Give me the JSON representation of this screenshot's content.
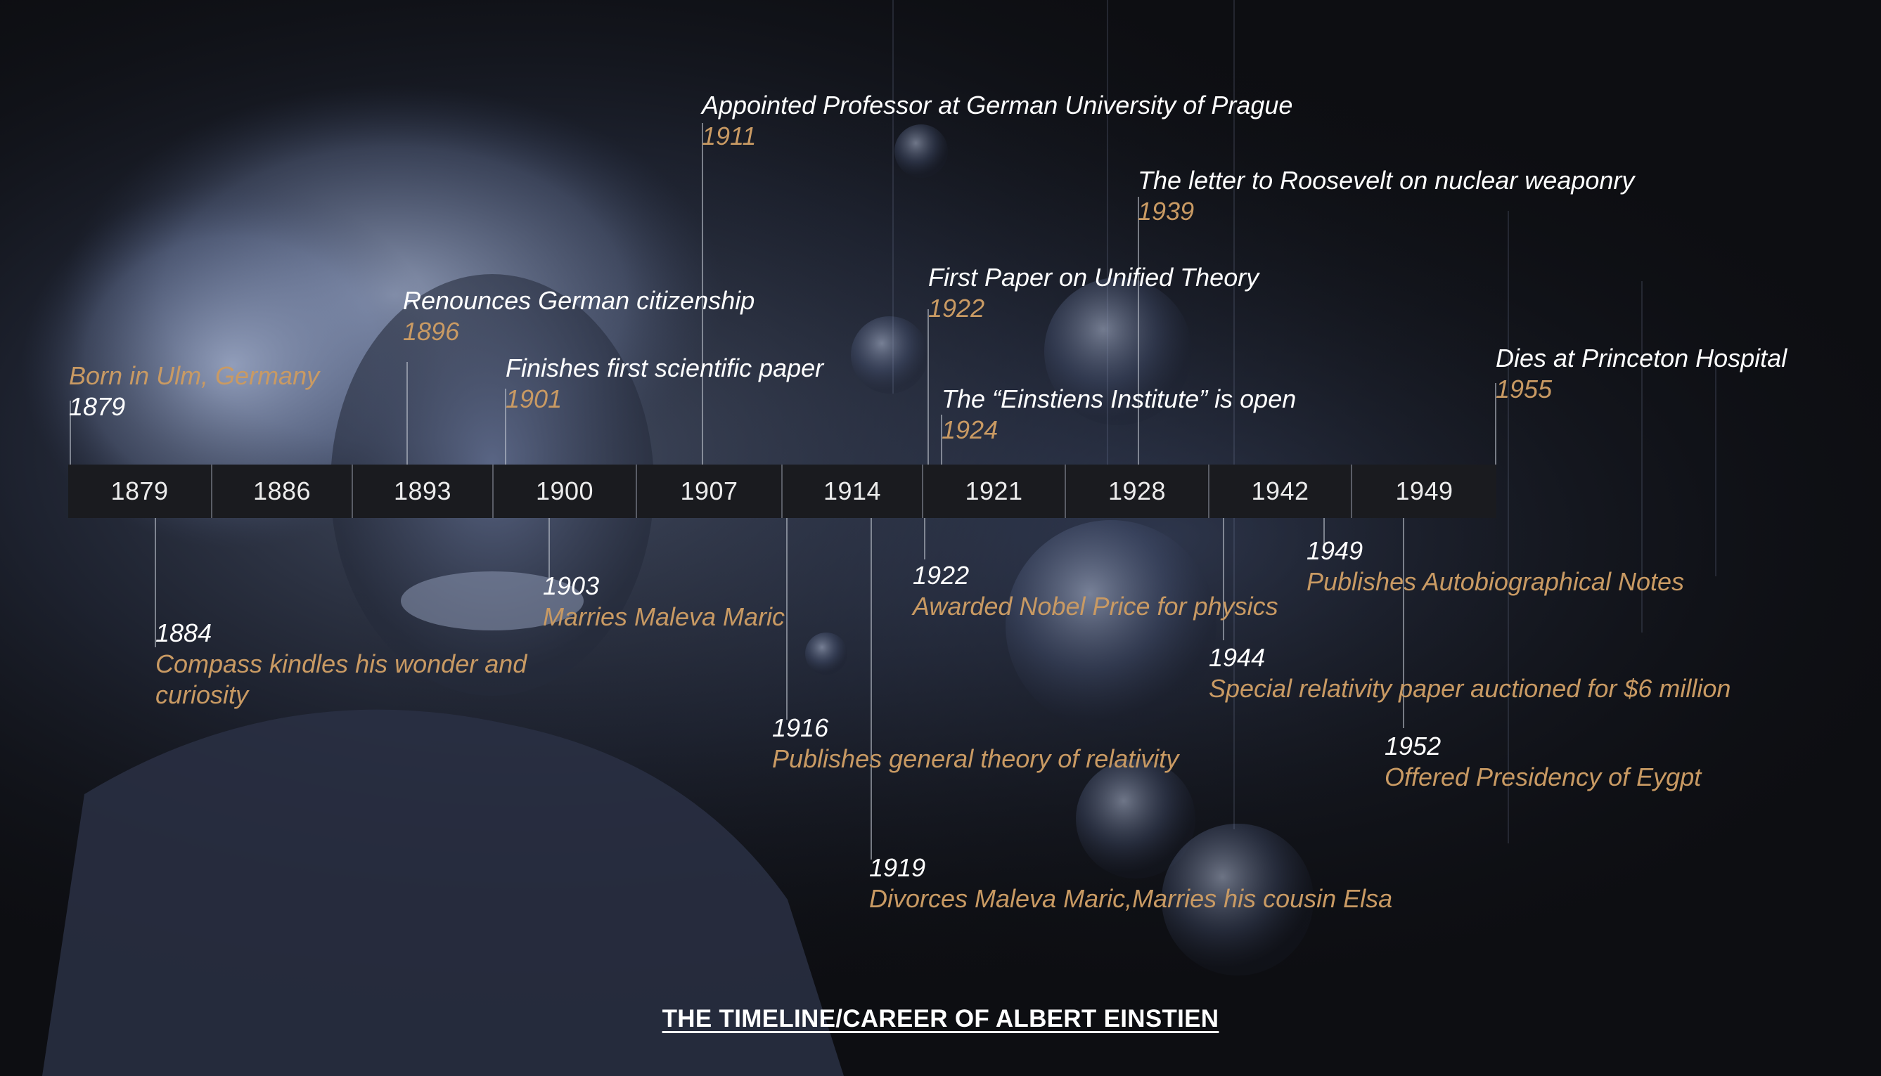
{
  "title": "THE TIMELINE/CAREER OF ALBERT EINSTIEN",
  "colors": {
    "background": "#0d0e12",
    "year_text": "#ffffff",
    "event_text": "#c99a63",
    "bar": "#1a1b1f"
  },
  "axis_ticks": [
    "1879",
    "1886",
    "1893",
    "1900",
    "1907",
    "1914",
    "1921",
    "1928",
    "1942",
    "1949"
  ],
  "events_above": [
    {
      "id": "born",
      "first": "Born in Ulm, Germany",
      "second": "1879"
    },
    {
      "id": "renounces",
      "first": "Renounces German citizenship",
      "second": "1896"
    },
    {
      "id": "first-paper",
      "first": "Finishes first scientific paper",
      "second": "1901"
    },
    {
      "id": "prague",
      "first": "Appointed Professor at German University of Prague",
      "second": "1911"
    },
    {
      "id": "unified",
      "first": "First Paper on Unified Theory",
      "second": "1922"
    },
    {
      "id": "institute",
      "first": "The “Einstiens Institute” is open",
      "second": "1924"
    },
    {
      "id": "roosevelt",
      "first": "The letter to Roosevelt on nuclear weaponry",
      "second": "1939"
    },
    {
      "id": "dies",
      "first": "Dies at Princeton Hospital",
      "second": "1955"
    }
  ],
  "events_below": [
    {
      "id": "compass",
      "year": "1884",
      "lines": [
        "Compass kindles his wonder and",
        "curiosity"
      ]
    },
    {
      "id": "marries",
      "year": "1903",
      "lines": [
        "Marries Maleva Maric"
      ]
    },
    {
      "id": "relativity",
      "year": "1916",
      "lines": [
        "Publishes general theory of relativity"
      ]
    },
    {
      "id": "divorce",
      "year": "1919",
      "lines": [
        "Divorces Maleva Maric,Marries his cousin Elsa"
      ]
    },
    {
      "id": "nobel",
      "year": "1922",
      "lines": [
        "Awarded Nobel Price for physics"
      ]
    },
    {
      "id": "auction",
      "year": "1944",
      "lines": [
        "Special relativity paper auctioned for $6 million"
      ]
    },
    {
      "id": "autobio",
      "year": "1949",
      "lines": [
        "Publishes Autobiographical Notes"
      ]
    },
    {
      "id": "egypt",
      "year": "1952",
      "lines": [
        "Offered Presidency of Eygpt"
      ]
    }
  ]
}
